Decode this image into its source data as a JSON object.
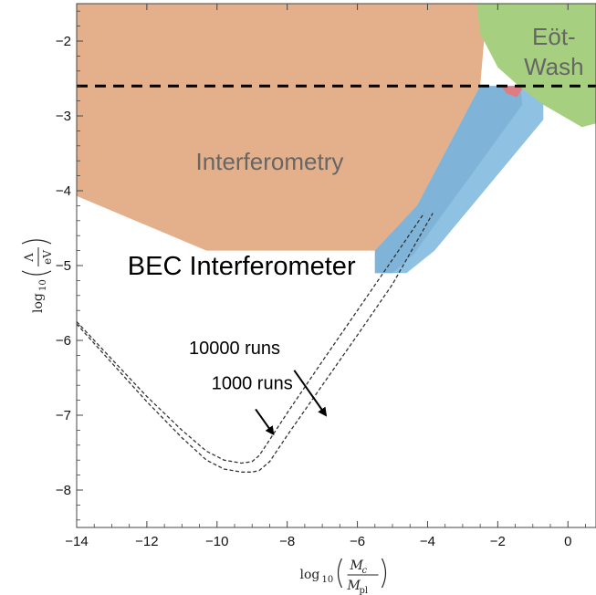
{
  "chart_data": {
    "type": "area",
    "title": "",
    "xlim": [
      -14,
      0.8
    ],
    "ylim": [
      -8.5,
      -1.5
    ],
    "x_ticks": [
      -14,
      -12,
      -10,
      -8,
      -6,
      -4,
      -2,
      0
    ],
    "y_ticks": [
      -8,
      -7,
      -6,
      -5,
      -4,
      -3,
      -2
    ],
    "x_tick_labels": [
      "−14",
      "−12",
      "−10",
      "−8",
      "−6",
      "−4",
      "−2",
      "0"
    ],
    "y_tick_labels": [
      "−8",
      "−7",
      "−6",
      "−5",
      "−4",
      "−3",
      "−2"
    ],
    "xlabel": {
      "prefix": "log",
      "sub": "10",
      "num": "M",
      "num_sub": "c",
      "den": "M",
      "den_sub": "pl"
    },
    "ylabel": {
      "prefix": "log",
      "sub": "10",
      "num": "Λ",
      "den": "eV"
    },
    "grid": false,
    "regions": [
      {
        "name": "Interferometry",
        "color": "#e3b08b",
        "points": [
          [
            -14,
            -1.5
          ],
          [
            -2.3,
            -1.5
          ],
          [
            -2.5,
            -2.6
          ],
          [
            -4.3,
            -4.2
          ],
          [
            -5.3,
            -4.8
          ],
          [
            -10.3,
            -4.8
          ],
          [
            -14,
            -4.07
          ]
        ]
      },
      {
        "name": "",
        "color": "#8fc1e3",
        "points": [
          [
            -1.6,
            -2.6
          ],
          [
            -0.7,
            -2.6
          ],
          [
            -0.7,
            -3.05
          ],
          [
            -3.8,
            -4.8
          ],
          [
            -4.6,
            -5.1
          ],
          [
            -5.5,
            -5.1
          ],
          [
            -5.5,
            -4.8
          ],
          [
            -4.3,
            -4.2
          ],
          [
            -2.5,
            -2.6
          ]
        ]
      },
      {
        "name": "",
        "color": "#7fb4d8",
        "points": [
          [
            -2.1,
            -2.6
          ],
          [
            -1.35,
            -2.6
          ],
          [
            -1.3,
            -2.85
          ],
          [
            -4.4,
            -4.85
          ],
          [
            -5.0,
            -5.1
          ],
          [
            -5.5,
            -5.1
          ],
          [
            -5.5,
            -4.8
          ],
          [
            -4.3,
            -4.2
          ],
          [
            -2.5,
            -2.6
          ]
        ]
      },
      {
        "name": "",
        "color": "#dd7d82",
        "points": [
          [
            -1.9,
            -2.6
          ],
          [
            -1.25,
            -2.6
          ],
          [
            -1.45,
            -2.75
          ],
          [
            -1.75,
            -2.7
          ]
        ]
      },
      {
        "name": "Eöt-Wash",
        "color": "#a7cf80",
        "points": [
          [
            -2.6,
            -1.5
          ],
          [
            0.8,
            -1.5
          ],
          [
            0.8,
            -3.1
          ],
          [
            0.4,
            -3.15
          ],
          [
            -0.7,
            -2.85
          ],
          [
            -1.4,
            -2.6
          ],
          [
            -2.0,
            -2.35
          ],
          [
            -2.5,
            -1.9
          ]
        ]
      }
    ],
    "dashed_line": {
      "y": -2.6,
      "style": "dashed",
      "color": "#000000"
    },
    "series": [
      {
        "name": "10000 runs",
        "style": "dashed",
        "x": [
          -14,
          -13,
          -12,
          -11,
          -10.3,
          -9.8,
          -9.3,
          -9.0,
          -8.8,
          -8.6,
          -8.0,
          -7.0,
          -6.0,
          -5.0,
          -4.1
        ],
        "y": [
          -5.75,
          -6.25,
          -6.75,
          -7.2,
          -7.48,
          -7.6,
          -7.64,
          -7.62,
          -7.54,
          -7.4,
          -6.97,
          -6.28,
          -5.6,
          -4.92,
          -4.3
        ]
      },
      {
        "name": "1000 runs",
        "style": "dashed",
        "x": [
          -14,
          -13,
          -12,
          -11,
          -10.3,
          -9.8,
          -9.3,
          -9.0,
          -8.8,
          -8.5,
          -8.0,
          -7.0,
          -6.0,
          -5.0,
          -3.85
        ],
        "y": [
          -5.78,
          -6.3,
          -6.82,
          -7.3,
          -7.6,
          -7.72,
          -7.76,
          -7.76,
          -7.74,
          -7.62,
          -7.27,
          -6.6,
          -5.93,
          -5.25,
          -4.3
        ]
      }
    ],
    "annotations": [
      {
        "text": "Interferometry",
        "x": -8.5,
        "y": -3.72,
        "size": 26,
        "color": "#666666"
      },
      {
        "text": "Eöt-",
        "x": -0.4,
        "y": -2.05,
        "size": 26,
        "color": "#666666"
      },
      {
        "text": "Wash",
        "x": -0.4,
        "y": -2.45,
        "size": 26,
        "color": "#666666"
      },
      {
        "text": "BEC Interferometer",
        "x": -9.3,
        "y": -5.12,
        "size": 29,
        "color": "#000000"
      },
      {
        "text": "10000 runs",
        "x": -9.5,
        "y": -6.18,
        "size": 20,
        "color": "#000000"
      },
      {
        "text": "1000 runs",
        "x": -9.0,
        "y": -6.65,
        "size": 20,
        "color": "#000000"
      }
    ],
    "arrows": [
      {
        "from": [
          -7.8,
          -6.4
        ],
        "to": [
          -6.9,
          -7.0
        ]
      },
      {
        "from": [
          -8.9,
          -6.92
        ],
        "to": [
          -8.4,
          -7.25
        ]
      }
    ]
  }
}
